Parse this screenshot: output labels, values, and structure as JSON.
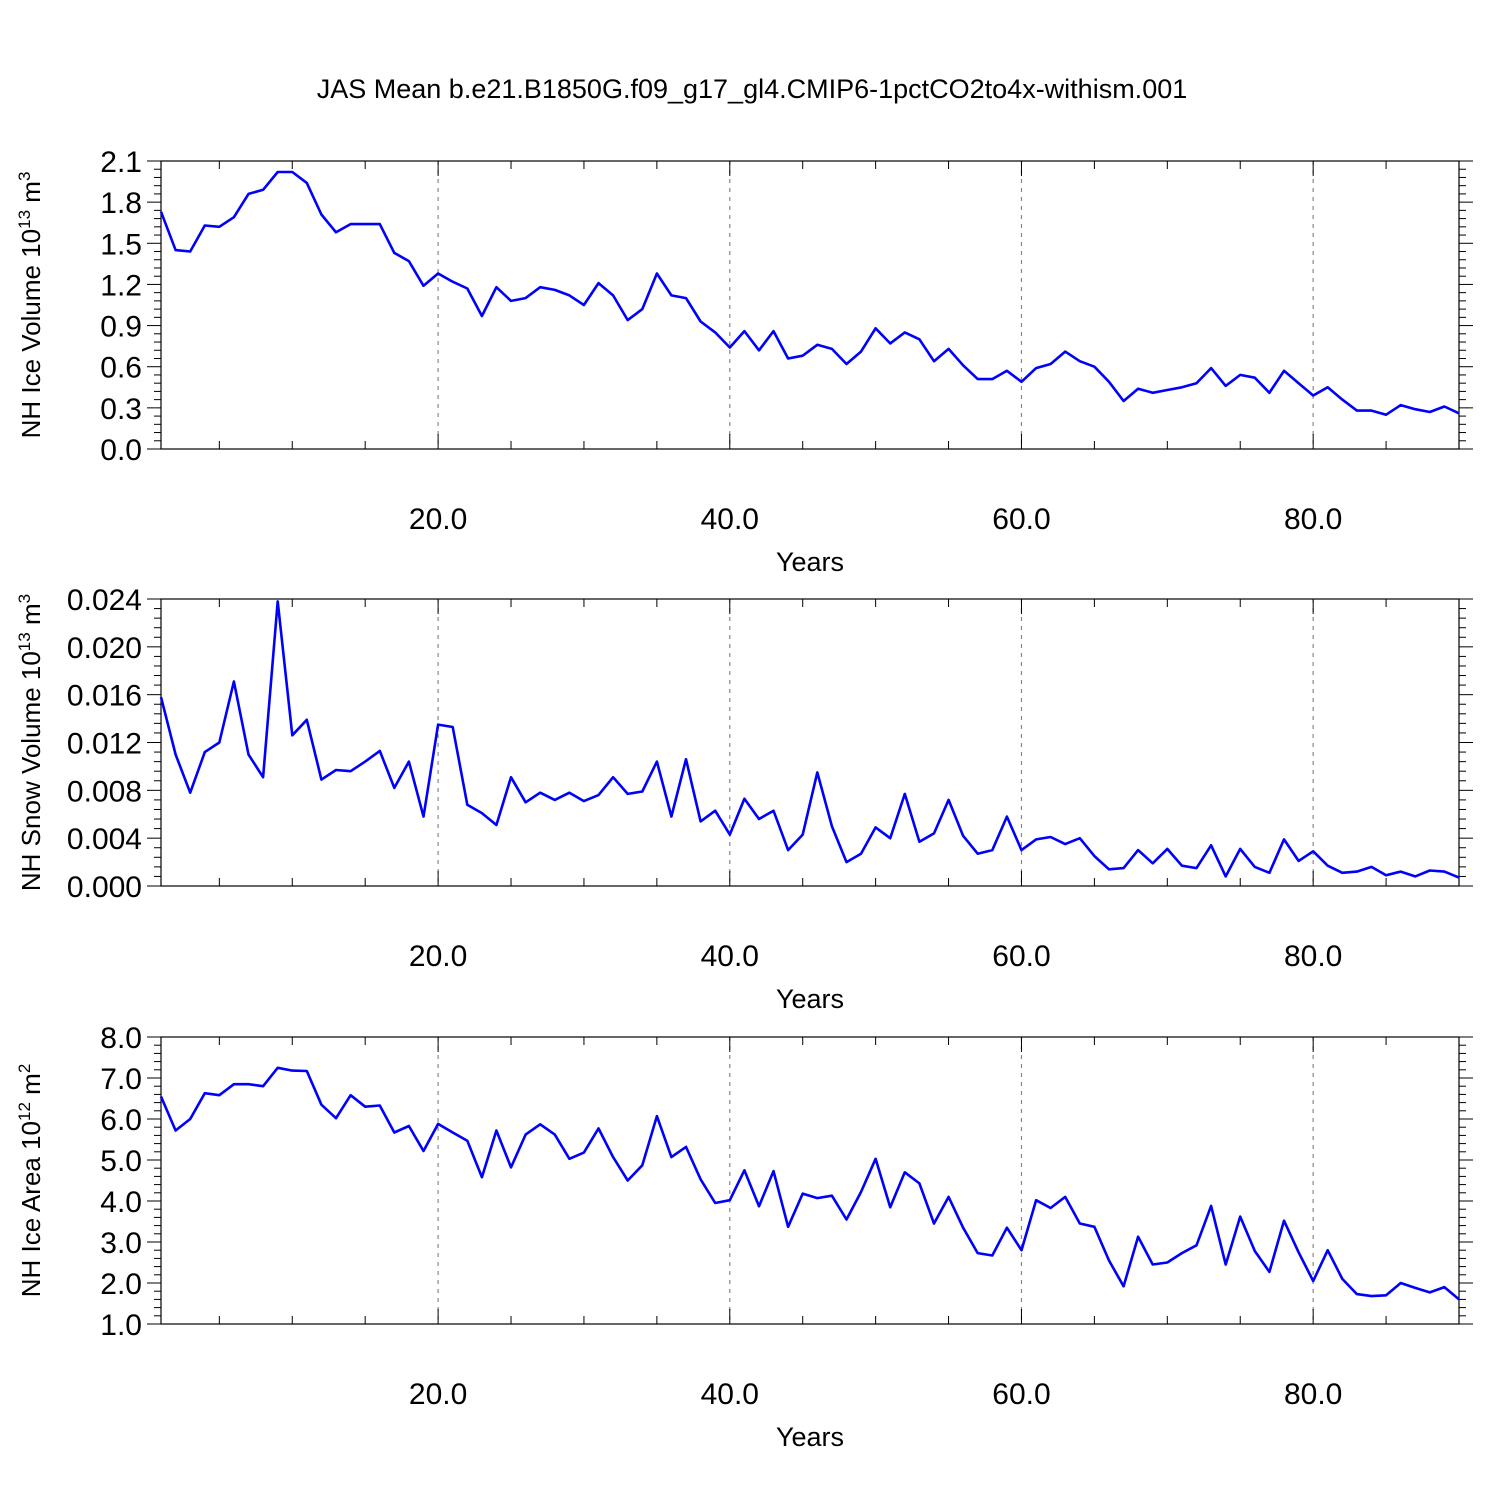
{
  "title": "JAS Mean b.e21.B1850G.f09_g17_gl4.CMIP6-1pctCO2to4x-withism.001",
  "chart_data": [
    {
      "type": "line",
      "ylabel_main": "NH Ice Volume 10",
      "ylabel_exp": "13",
      "ylabel_unit": " m",
      "ylabel_unit_exp": "3",
      "xlabel": "Years",
      "xlim": [
        1,
        90
      ],
      "ylim": [
        0.0,
        2.1
      ],
      "yticks": [
        0.0,
        0.3,
        0.6,
        0.9,
        1.2,
        1.5,
        1.8,
        2.1
      ],
      "yticklabels": [
        "0.0",
        "0.3",
        "0.6",
        "0.9",
        "1.2",
        "1.5",
        "1.8",
        "2.1"
      ],
      "xticks": [
        20,
        40,
        60,
        80
      ],
      "xticklabels": [
        "20.0",
        "40.0",
        "60.0",
        "80.0"
      ],
      "grid_x": true,
      "color": "#0000ff",
      "x_start": 1,
      "values": [
        1.73,
        1.45,
        1.44,
        1.63,
        1.62,
        1.69,
        1.86,
        1.89,
        2.02,
        2.02,
        1.94,
        1.71,
        1.58,
        1.64,
        1.64,
        1.64,
        1.43,
        1.37,
        1.19,
        1.28,
        1.22,
        1.17,
        0.97,
        1.18,
        1.08,
        1.1,
        1.18,
        1.16,
        1.12,
        1.05,
        1.21,
        1.12,
        0.94,
        1.02,
        1.28,
        1.12,
        1.1,
        0.93,
        0.85,
        0.74,
        0.86,
        0.72,
        0.86,
        0.66,
        0.68,
        0.76,
        0.73,
        0.62,
        0.71,
        0.88,
        0.77,
        0.85,
        0.8,
        0.64,
        0.73,
        0.61,
        0.51,
        0.51,
        0.57,
        0.49,
        0.59,
        0.62,
        0.71,
        0.64,
        0.6,
        0.49,
        0.35,
        0.44,
        0.41,
        0.43,
        0.45,
        0.48,
        0.59,
        0.46,
        0.54,
        0.52,
        0.41,
        0.57,
        0.48,
        0.39,
        0.45,
        0.36,
        0.28,
        0.28,
        0.25,
        0.32,
        0.29,
        0.27,
        0.31,
        0.26
      ]
    },
    {
      "type": "line",
      "ylabel_main": "NH Snow Volume 10",
      "ylabel_exp": "13",
      "ylabel_unit": " m",
      "ylabel_unit_exp": "3",
      "xlabel": "Years",
      "xlim": [
        1,
        90
      ],
      "ylim": [
        0.0,
        0.024
      ],
      "yticks": [
        0.0,
        0.004,
        0.008,
        0.012,
        0.016,
        0.02,
        0.024
      ],
      "yticklabels": [
        "0.000",
        "0.004",
        "0.008",
        "0.012",
        "0.016",
        "0.020",
        "0.024"
      ],
      "xticks": [
        20,
        40,
        60,
        80
      ],
      "xticklabels": [
        "20.0",
        "40.0",
        "60.0",
        "80.0"
      ],
      "grid_x": true,
      "color": "#0000ff",
      "x_start": 1,
      "values": [
        0.0158,
        0.011,
        0.0078,
        0.0112,
        0.012,
        0.0171,
        0.011,
        0.0091,
        0.0238,
        0.0126,
        0.0139,
        0.0089,
        0.0097,
        0.0096,
        0.0104,
        0.0113,
        0.0082,
        0.0104,
        0.0058,
        0.0135,
        0.0133,
        0.0068,
        0.0061,
        0.0051,
        0.0091,
        0.007,
        0.0078,
        0.0072,
        0.0078,
        0.0071,
        0.0076,
        0.0091,
        0.0077,
        0.0079,
        0.0104,
        0.0058,
        0.0106,
        0.0054,
        0.0063,
        0.0043,
        0.0073,
        0.0056,
        0.0063,
        0.003,
        0.0043,
        0.0095,
        0.005,
        0.002,
        0.0027,
        0.0049,
        0.004,
        0.0077,
        0.0037,
        0.0044,
        0.0072,
        0.0042,
        0.0027,
        0.003,
        0.0058,
        0.003,
        0.0039,
        0.0041,
        0.0035,
        0.004,
        0.0025,
        0.0014,
        0.0015,
        0.003,
        0.0019,
        0.0031,
        0.0017,
        0.0015,
        0.0034,
        0.0008,
        0.0031,
        0.0016,
        0.0011,
        0.0039,
        0.0021,
        0.0029,
        0.0017,
        0.0011,
        0.0012,
        0.0016,
        0.0009,
        0.0012,
        0.0008,
        0.0013,
        0.0012,
        0.0007
      ]
    },
    {
      "type": "line",
      "ylabel_main": "NH Ice Area 10",
      "ylabel_exp": "12",
      "ylabel_unit": " m",
      "ylabel_unit_exp": "2",
      "xlabel": "Years",
      "xlim": [
        1,
        90
      ],
      "ylim": [
        1.0,
        8.0
      ],
      "yticks": [
        1.0,
        2.0,
        3.0,
        4.0,
        5.0,
        6.0,
        7.0,
        8.0
      ],
      "yticklabels": [
        "1.0",
        "2.0",
        "3.0",
        "4.0",
        "5.0",
        "6.0",
        "7.0",
        "8.0"
      ],
      "xticks": [
        20,
        40,
        60,
        80
      ],
      "xticklabels": [
        "20.0",
        "40.0",
        "60.0",
        "80.0"
      ],
      "grid_x": true,
      "color": "#0000ff",
      "x_start": 1,
      "values": [
        6.55,
        5.72,
        6.0,
        6.63,
        6.58,
        6.85,
        6.85,
        6.8,
        7.25,
        7.18,
        7.17,
        6.35,
        6.02,
        6.58,
        6.3,
        6.33,
        5.67,
        5.83,
        5.22,
        5.88,
        5.67,
        5.47,
        4.58,
        5.72,
        4.82,
        5.62,
        5.87,
        5.62,
        5.03,
        5.18,
        5.77,
        5.07,
        4.5,
        4.87,
        6.07,
        5.07,
        5.32,
        4.53,
        3.95,
        4.02,
        4.75,
        3.87,
        4.73,
        3.37,
        4.18,
        4.07,
        4.13,
        3.55,
        4.22,
        5.03,
        3.85,
        4.7,
        4.43,
        3.45,
        4.1,
        3.35,
        2.73,
        2.67,
        3.35,
        2.8,
        4.02,
        3.83,
        4.1,
        3.45,
        3.37,
        2.55,
        1.92,
        3.13,
        2.45,
        2.5,
        2.73,
        2.92,
        3.88,
        2.45,
        3.62,
        2.78,
        2.27,
        3.52,
        2.75,
        2.05,
        2.8,
        2.1,
        1.73,
        1.68,
        1.7,
        2.0,
        1.88,
        1.77,
        1.9,
        1.6
      ]
    }
  ]
}
